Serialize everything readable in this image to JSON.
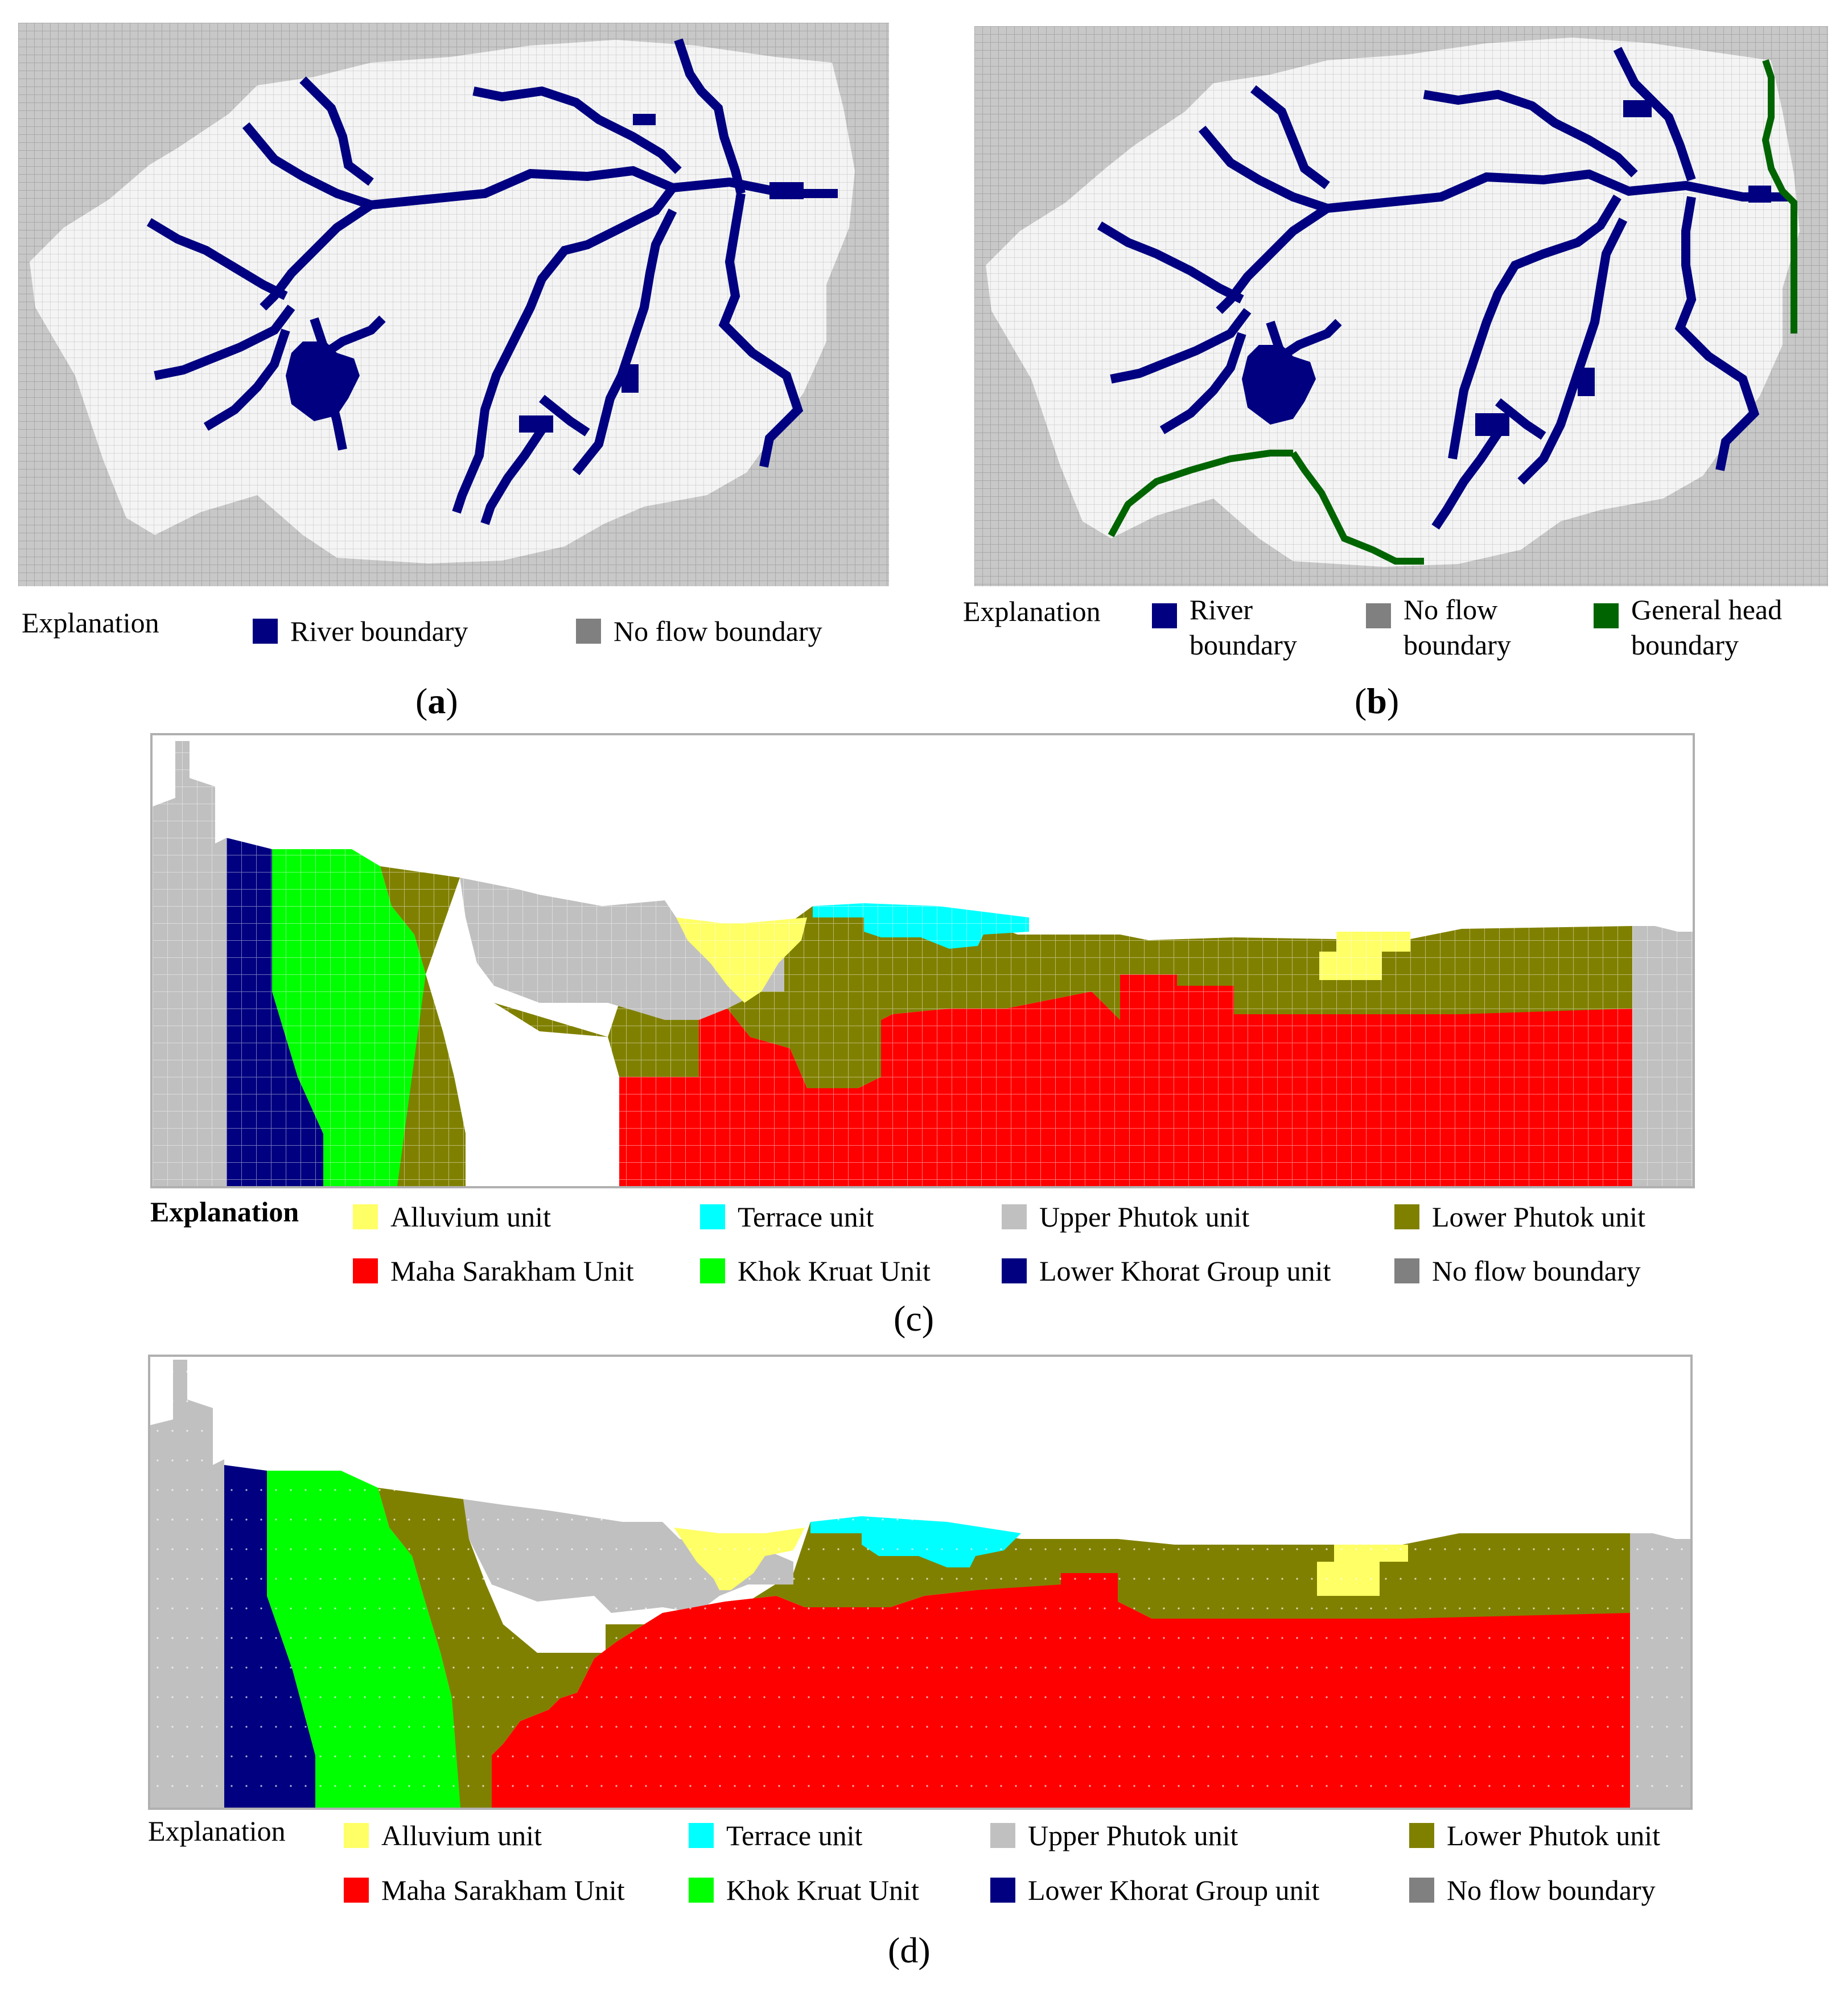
{
  "panel_a": {
    "caption_open": "(",
    "caption_letter": "a",
    "caption_close": ")",
    "legend_title": "Explanation",
    "legend": [
      {
        "label": "River boundary",
        "color": "#000080"
      },
      {
        "label": "No flow boundary",
        "color": "#808080"
      }
    ]
  },
  "panel_b": {
    "caption_open": "(",
    "caption_letter": "b",
    "caption_close": ")",
    "legend_title": "Explanation",
    "legend": [
      {
        "line1": "River",
        "line2": "boundary",
        "color": "#000080"
      },
      {
        "line1": "No flow",
        "line2": "boundary",
        "color": "#808080"
      },
      {
        "line1": "General head",
        "line2": "boundary",
        "color": "#006400"
      }
    ]
  },
  "panel_c": {
    "caption": "(c)",
    "legend_title": "Explanation",
    "legend": [
      {
        "label": "Alluvium unit",
        "color": "#ffff66"
      },
      {
        "label": "Terrace unit",
        "color": "#00ffff"
      },
      {
        "label": "Upper Phutok unit",
        "color": "#c0c0c0"
      },
      {
        "label": "Lower Phutok  unit",
        "color": "#808000"
      },
      {
        "label": "Maha Sarakham Unit",
        "color": "#ff0000"
      },
      {
        "label": "Khok Kruat Unit",
        "color": "#00ff00"
      },
      {
        "label": "Lower Khorat Group unit",
        "color": "#000080"
      },
      {
        "label": "No flow boundary",
        "color": "#808080"
      }
    ]
  },
  "panel_d": {
    "caption": "(d)",
    "legend_title": "Explanation",
    "legend": [
      {
        "label": "Alluvium unit",
        "color": "#ffff66"
      },
      {
        "label": "Terrace unit",
        "color": "#00ffff"
      },
      {
        "label": "Upper Phutok unit",
        "color": "#c0c0c0"
      },
      {
        "label": "Lower Phutok  unit",
        "color": "#808000"
      },
      {
        "label": "Maha Sarakham Unit",
        "color": "#ff0000"
      },
      {
        "label": "Khok Kruat Unit",
        "color": "#00ff00"
      },
      {
        "label": "Lower Khorat Group unit",
        "color": "#000080"
      },
      {
        "label": "No flow boundary",
        "color": "#808080"
      }
    ]
  }
}
